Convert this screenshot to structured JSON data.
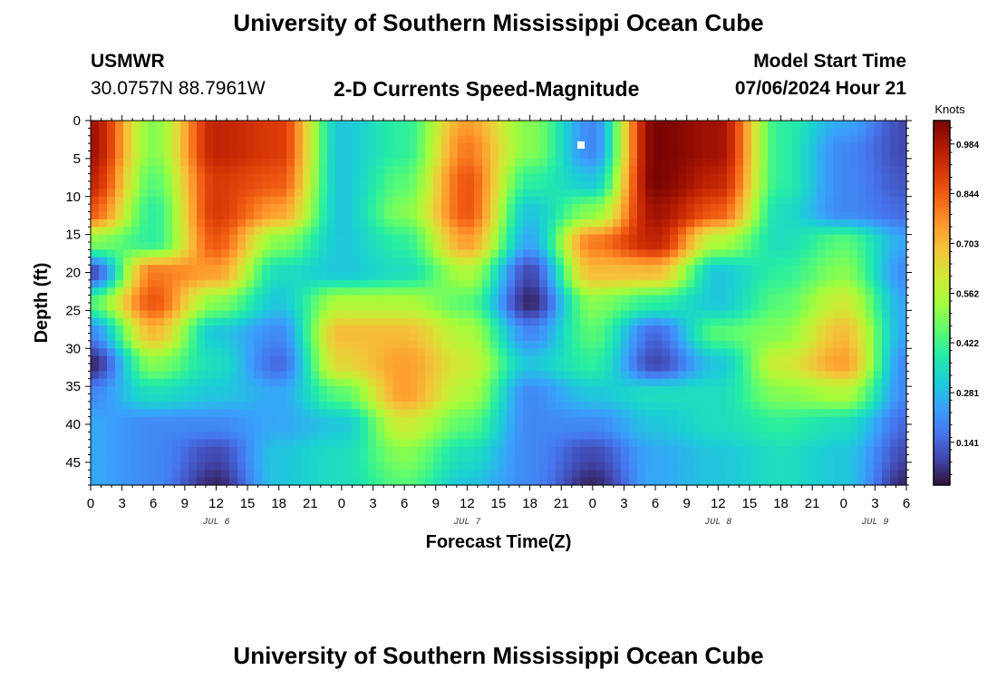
{
  "page": {
    "title": "University of Southern Mississippi Ocean Cube",
    "footer_title": "University of Southern Mississippi Ocean Cube"
  },
  "header": {
    "station": "USMWR",
    "coords": "30.0757N  88.7961W",
    "plot_title": "2-D Currents Speed-Magnitude",
    "start_label": "Model Start Time",
    "start_value": "07/06/2024 Hour 21"
  },
  "chart_data": {
    "type": "heatmap",
    "title": "2-D Currents Speed-Magnitude",
    "xlabel": "Forecast Time(Z)",
    "ylabel": "Depth (ft)",
    "x_ticks": [
      "0",
      "3",
      "6",
      "9",
      "12",
      "15",
      "18",
      "21",
      "0",
      "3",
      "6",
      "9",
      "12",
      "15",
      "18",
      "21",
      "0",
      "3",
      "6",
      "9",
      "12",
      "15",
      "18",
      "21",
      "0",
      "3",
      "6"
    ],
    "day_labels": [
      "JUL 6",
      "JUL 7",
      "JUL 8",
      "JUL 9"
    ],
    "y_ticks": [
      0,
      5,
      10,
      15,
      20,
      25,
      30,
      35,
      40,
      45
    ],
    "y_range": [
      0,
      48
    ],
    "x_range_hours": [
      0,
      78
    ],
    "colorbar": {
      "unit": "Knots",
      "ticks": [
        "0.984",
        "0.844",
        "0.703",
        "0.562",
        "0.422",
        "0.281",
        "0.141"
      ],
      "range": [
        0.02,
        1.05
      ],
      "colors": [
        "#30123b",
        "#4145ab",
        "#4675ed",
        "#39a2fc",
        "#1bcfd4",
        "#24eca6",
        "#61fc6c",
        "#a4fc3b",
        "#d1e834",
        "#f3c63a",
        "#fe9b2d",
        "#f36315",
        "#d93806",
        "#b11901",
        "#7a0403"
      ]
    },
    "grid_x_hours": [
      0,
      6,
      12,
      18,
      24,
      30,
      36,
      42,
      48,
      54,
      60,
      66,
      72,
      78
    ],
    "grid_depths_ft": [
      0,
      4,
      8,
      12,
      16,
      20,
      24,
      28,
      32,
      36,
      40,
      44,
      48
    ],
    "values": [
      [
        1.0,
        0.5,
        0.95,
        0.9,
        0.3,
        0.4,
        0.75,
        0.5,
        0.2,
        1.05,
        1.0,
        0.4,
        0.25,
        0.1
      ],
      [
        1.0,
        0.5,
        0.95,
        0.9,
        0.3,
        0.4,
        0.8,
        0.5,
        0.2,
        1.05,
        1.0,
        0.4,
        0.2,
        0.1
      ],
      [
        0.95,
        0.45,
        0.9,
        0.85,
        0.3,
        0.45,
        0.85,
        0.4,
        0.3,
        1.05,
        0.95,
        0.4,
        0.2,
        0.12
      ],
      [
        0.85,
        0.4,
        0.9,
        0.75,
        0.3,
        0.5,
        0.85,
        0.3,
        0.5,
        1.0,
        0.85,
        0.35,
        0.2,
        0.15
      ],
      [
        0.5,
        0.4,
        0.85,
        0.5,
        0.3,
        0.4,
        0.75,
        0.25,
        0.8,
        0.95,
        0.55,
        0.35,
        0.45,
        0.25
      ],
      [
        0.1,
        0.8,
        0.75,
        0.35,
        0.3,
        0.35,
        0.55,
        0.1,
        0.7,
        0.7,
        0.3,
        0.4,
        0.5,
        0.2
      ],
      [
        0.45,
        0.85,
        0.5,
        0.3,
        0.55,
        0.55,
        0.45,
        0.05,
        0.5,
        0.4,
        0.3,
        0.45,
        0.6,
        0.25
      ],
      [
        0.2,
        0.7,
        0.3,
        0.2,
        0.7,
        0.7,
        0.55,
        0.2,
        0.45,
        0.15,
        0.45,
        0.5,
        0.7,
        0.25
      ],
      [
        0.05,
        0.5,
        0.35,
        0.15,
        0.65,
        0.75,
        0.6,
        0.3,
        0.4,
        0.1,
        0.3,
        0.6,
        0.75,
        0.2
      ],
      [
        0.2,
        0.35,
        0.3,
        0.25,
        0.45,
        0.75,
        0.55,
        0.2,
        0.3,
        0.35,
        0.35,
        0.5,
        0.55,
        0.2
      ],
      [
        0.25,
        0.2,
        0.2,
        0.25,
        0.3,
        0.6,
        0.45,
        0.2,
        0.2,
        0.3,
        0.35,
        0.4,
        0.35,
        0.15
      ],
      [
        0.25,
        0.2,
        0.1,
        0.3,
        0.35,
        0.5,
        0.35,
        0.2,
        0.1,
        0.25,
        0.3,
        0.35,
        0.3,
        0.1
      ],
      [
        0.25,
        0.2,
        0.05,
        0.3,
        0.35,
        0.45,
        0.3,
        0.2,
        0.05,
        0.25,
        0.3,
        0.35,
        0.3,
        0.05
      ]
    ]
  }
}
